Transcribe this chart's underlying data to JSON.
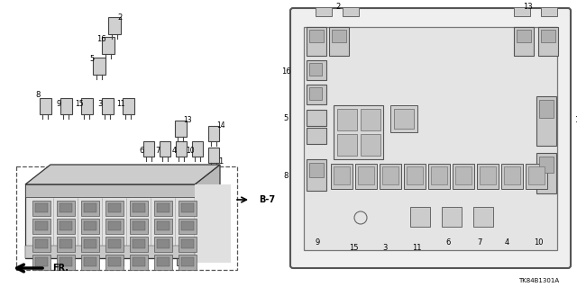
{
  "bg_color": "#ffffff",
  "diagram_code": "TK84B1301A",
  "b7_label": "B-7",
  "fr_label": "FR.",
  "fig_w": 6.4,
  "fig_h": 3.19,
  "edge_color": "#333333",
  "relay_face": "#d8d8d8",
  "relay_dark": "#b0b0b0",
  "box_face": "#e8e8e8",
  "box_outer": "#555555"
}
